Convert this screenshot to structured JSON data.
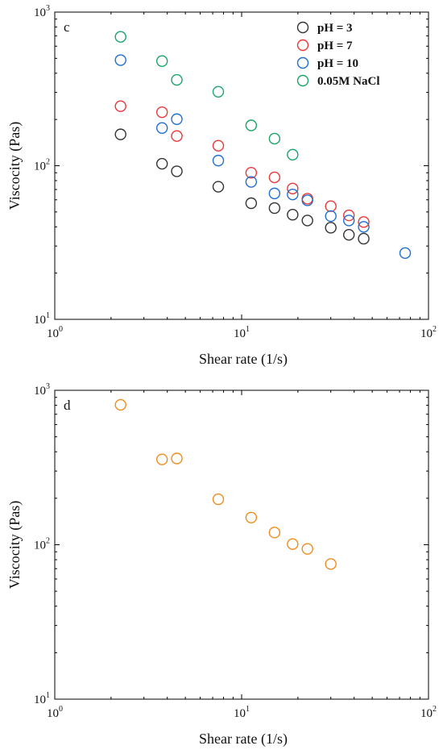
{
  "chart_data": [
    {
      "panel": "c",
      "type": "scatter",
      "xlabel": "Shear rate (1/s)",
      "ylabel": "Viscocity (Pas)",
      "x_scale": "log",
      "y_scale": "log",
      "xlim": [
        1,
        100
      ],
      "ylim": [
        10,
        1000
      ],
      "x_ticks": [
        {
          "base": "10",
          "exp": "0"
        },
        {
          "base": "10",
          "exp": "1"
        },
        {
          "base": "10",
          "exp": "2"
        }
      ],
      "y_ticks": [
        {
          "base": "10",
          "exp": "1"
        },
        {
          "base": "10",
          "exp": "2"
        },
        {
          "base": "10",
          "exp": "3"
        }
      ],
      "legend_position": "top-right",
      "series": [
        {
          "name": "pH = 3",
          "color": "#333333",
          "x": [
            2.25,
            3.75,
            4.5,
            7.5,
            11.25,
            15,
            18.75,
            22.5,
            30,
            37.5,
            45
          ],
          "y": [
            160,
            103,
            92,
            73,
            57,
            53,
            48,
            44,
            39.5,
            35.5,
            33.5
          ]
        },
        {
          "name": "pH = 7",
          "color": "#e8383a",
          "x": [
            2.25,
            3.75,
            4.5,
            7.5,
            11.25,
            15,
            18.75,
            22.5,
            30,
            37.5,
            45
          ],
          "y": [
            244,
            223,
            156,
            135,
            90,
            84,
            71,
            61,
            54.5,
            47.5,
            43
          ]
        },
        {
          "name": "pH = 10",
          "color": "#1f6fd1",
          "x": [
            2.25,
            3.75,
            4.5,
            7.5,
            11.25,
            15,
            18.75,
            22.5,
            30,
            37.5,
            45,
            75
          ],
          "y": [
            487,
            176,
            201,
            108,
            78.5,
            66,
            65,
            59.5,
            47,
            44,
            40,
            27
          ]
        },
        {
          "name": "0.05M NaCl",
          "color": "#1aa36b",
          "x": [
            2.25,
            3.75,
            4.5,
            7.5,
            11.25,
            15,
            18.75
          ],
          "y": [
            690,
            480,
            362,
            303,
            183,
            150,
            118
          ]
        }
      ]
    },
    {
      "panel": "d",
      "type": "scatter",
      "xlabel": "Shear rate (1/s)",
      "ylabel": "Viscocity (Pas)",
      "x_scale": "log",
      "y_scale": "log",
      "xlim": [
        1,
        100
      ],
      "ylim": [
        10,
        1000
      ],
      "x_ticks": [
        {
          "base": "10",
          "exp": "0"
        },
        {
          "base": "10",
          "exp": "1"
        },
        {
          "base": "10",
          "exp": "2"
        }
      ],
      "y_ticks": [
        {
          "base": "10",
          "exp": "1"
        },
        {
          "base": "10",
          "exp": "2"
        },
        {
          "base": "10",
          "exp": "3"
        }
      ],
      "series": [
        {
          "color": "#f08c1e",
          "x": [
            2.25,
            3.75,
            4.5,
            7.5,
            11.25,
            15,
            18.75,
            22.5,
            30
          ],
          "y": [
            805,
            357,
            362,
            197,
            150,
            120,
            101,
            94,
            75
          ]
        }
      ]
    }
  ]
}
